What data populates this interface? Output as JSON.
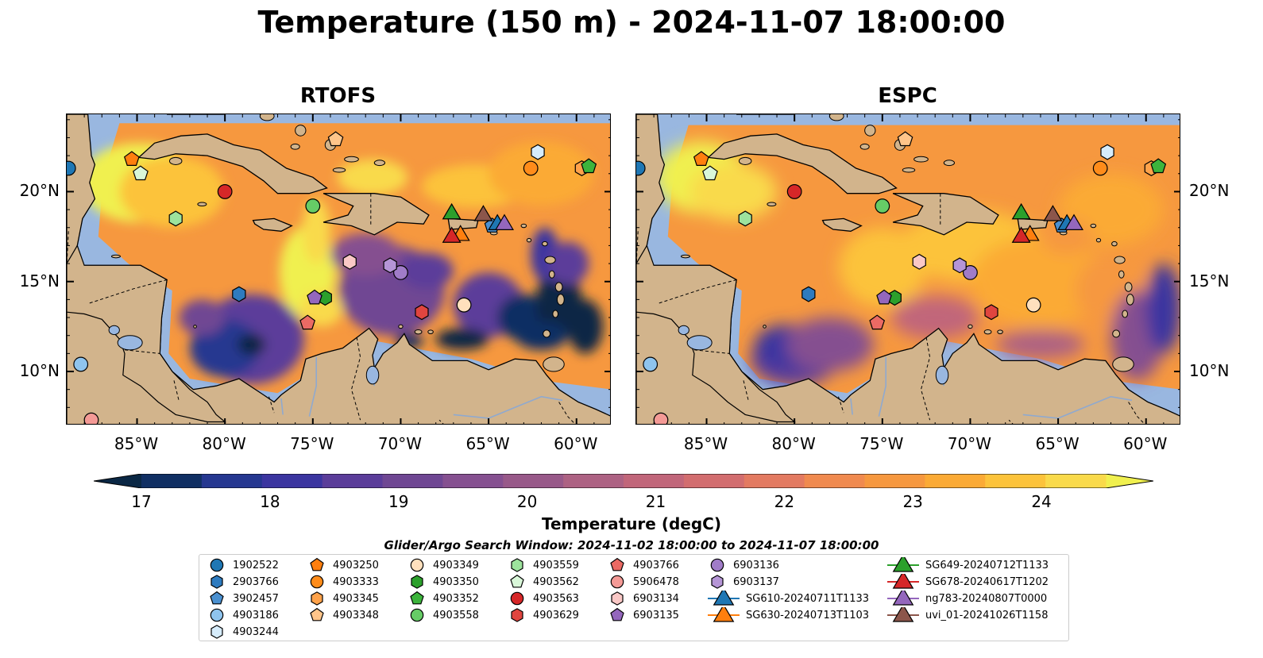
{
  "title": "Temperature (150 m) - 2024-11-07 18:00:00",
  "panels": [
    {
      "title": "RTOFS",
      "ocean_style": "rtofs"
    },
    {
      "title": "ESPC",
      "ocean_style": "espc"
    }
  ],
  "map_extent": {
    "lon": [
      -89,
      -58
    ],
    "lat": [
      7,
      24.3
    ]
  },
  "lon_ticks": [
    "85°W",
    "80°W",
    "75°W",
    "70°W",
    "65°W",
    "60°W"
  ],
  "lon_tick_values": [
    -85,
    -80,
    -75,
    -70,
    -65,
    -60
  ],
  "lat_ticks": [
    "20°N",
    "15°N",
    "10°N"
  ],
  "lat_tick_values": [
    20,
    15,
    10
  ],
  "colorbar": {
    "label": "Temperature (degC)",
    "min": 17,
    "max": 24.5,
    "step": 0.5,
    "ticks": [
      "17",
      "18",
      "19",
      "20",
      "21",
      "22",
      "23",
      "24"
    ],
    "tick_values": [
      17,
      18,
      19,
      20,
      21,
      22,
      23,
      24
    ],
    "colors": [
      "#0a2744",
      "#102f63",
      "#253790",
      "#3b35a0",
      "#5b3d9a",
      "#6f4793",
      "#855090",
      "#985989",
      "#ad6283",
      "#c1667a",
      "#d26d6f",
      "#e37a61",
      "#f08a4f",
      "#f6983f",
      "#fbaa35",
      "#fcc33b",
      "#f9da4b",
      "#f0f04f"
    ],
    "cmap": "thermal"
  },
  "legend_title": "Glider/Argo Search Window: 2024-11-02 18:00:00 to 2024-11-07 18:00:00",
  "legend": [
    {
      "label": "1902522",
      "marker": "circle",
      "color": "#1f77b4",
      "lon": -88.9,
      "lat": 21.3
    },
    {
      "label": "2903766",
      "marker": "hexagon",
      "color": "#2e7bbf",
      "lon": -79.2,
      "lat": 14.3
    },
    {
      "label": "3902457",
      "marker": "pentagon",
      "color": "#4a90d0",
      "lon": -64.8,
      "lat": 18.1
    },
    {
      "label": "4903186",
      "marker": "circle",
      "color": "#8fc4ee",
      "lon": -88.2,
      "lat": 10.4
    },
    {
      "label": "4903244",
      "marker": "hexagon",
      "color": "#d6ecfb",
      "lon": -62.2,
      "lat": 22.2
    },
    {
      "label": "4903250",
      "marker": "pentagon",
      "color": "#ff7f0e",
      "lon": -85.3,
      "lat": 21.8
    },
    {
      "label": "4903333",
      "marker": "circle",
      "color": "#ff8c1a",
      "lon": -62.6,
      "lat": 21.3
    },
    {
      "label": "4903345",
      "marker": "hexagon",
      "color": "#ffa24a",
      "lon": -59.7,
      "lat": 21.3
    },
    {
      "label": "4903348",
      "marker": "pentagon",
      "color": "#ffc58a",
      "lon": -73.7,
      "lat": 22.9
    },
    {
      "label": "4903349",
      "marker": "circle",
      "color": "#ffe0bd",
      "lon": -66.4,
      "lat": 13.7
    },
    {
      "label": "4903350",
      "marker": "hexagon",
      "color": "#2ca02c",
      "lon": -74.3,
      "lat": 14.1
    },
    {
      "label": "4903352",
      "marker": "pentagon",
      "color": "#3cb43c",
      "lon": -59.3,
      "lat": 21.4
    },
    {
      "label": "4903558",
      "marker": "circle",
      "color": "#66cc66",
      "lon": -75.0,
      "lat": 19.2
    },
    {
      "label": "4903559",
      "marker": "hexagon",
      "color": "#9de39d",
      "lon": -82.8,
      "lat": 18.5
    },
    {
      "label": "4903562",
      "marker": "pentagon",
      "color": "#d9f7d9",
      "lon": -84.8,
      "lat": 21.0
    },
    {
      "label": "4903563",
      "marker": "circle",
      "color": "#d62728",
      "lon": -80.0,
      "lat": 20.0
    },
    {
      "label": "4903629",
      "marker": "hexagon",
      "color": "#e0453f",
      "lon": -68.8,
      "lat": 13.3
    },
    {
      "label": "4903766",
      "marker": "pentagon",
      "color": "#eb6a64",
      "lon": -75.3,
      "lat": 12.7
    },
    {
      "label": "5906478",
      "marker": "circle",
      "color": "#f49a96",
      "lon": -87.6,
      "lat": 7.3
    },
    {
      "label": "6903134",
      "marker": "hexagon",
      "color": "#fac8c6",
      "lon": -72.9,
      "lat": 16.1
    },
    {
      "label": "6903135",
      "marker": "pentagon",
      "color": "#9467bd",
      "lon": -74.9,
      "lat": 14.1
    },
    {
      "label": "6903136",
      "marker": "circle",
      "color": "#a07cc8",
      "lon": -70.0,
      "lat": 15.5
    },
    {
      "label": "6903137",
      "marker": "hexagon",
      "color": "#b595d6",
      "lon": -70.6,
      "lat": 15.9
    },
    {
      "label": "SG610-20240711T1133",
      "marker": "triangle",
      "color": "#1f77b4",
      "line": true,
      "lon": -64.5,
      "lat": 18.2
    },
    {
      "label": "SG630-20240713T1103",
      "marker": "triangle",
      "color": "#ff7f0e",
      "line": true,
      "lon": -66.6,
      "lat": 17.6
    },
    {
      "label": "SG649-20240712T1133",
      "marker": "triangle",
      "color": "#2ca02c",
      "line": true,
      "lon": -67.1,
      "lat": 18.8
    },
    {
      "label": "SG678-20240617T1202",
      "marker": "triangle",
      "color": "#d62728",
      "line": true,
      "lon": -67.1,
      "lat": 17.5
    },
    {
      "label": "ng783-20240807T0000",
      "marker": "triangle",
      "color": "#9467bd",
      "line": true,
      "lon": -64.1,
      "lat": 18.2
    },
    {
      "label": "uvi_01-20241026T1158",
      "marker": "triangle",
      "color": "#8c564b",
      "line": true,
      "lon": -65.3,
      "lat": 18.7
    }
  ]
}
